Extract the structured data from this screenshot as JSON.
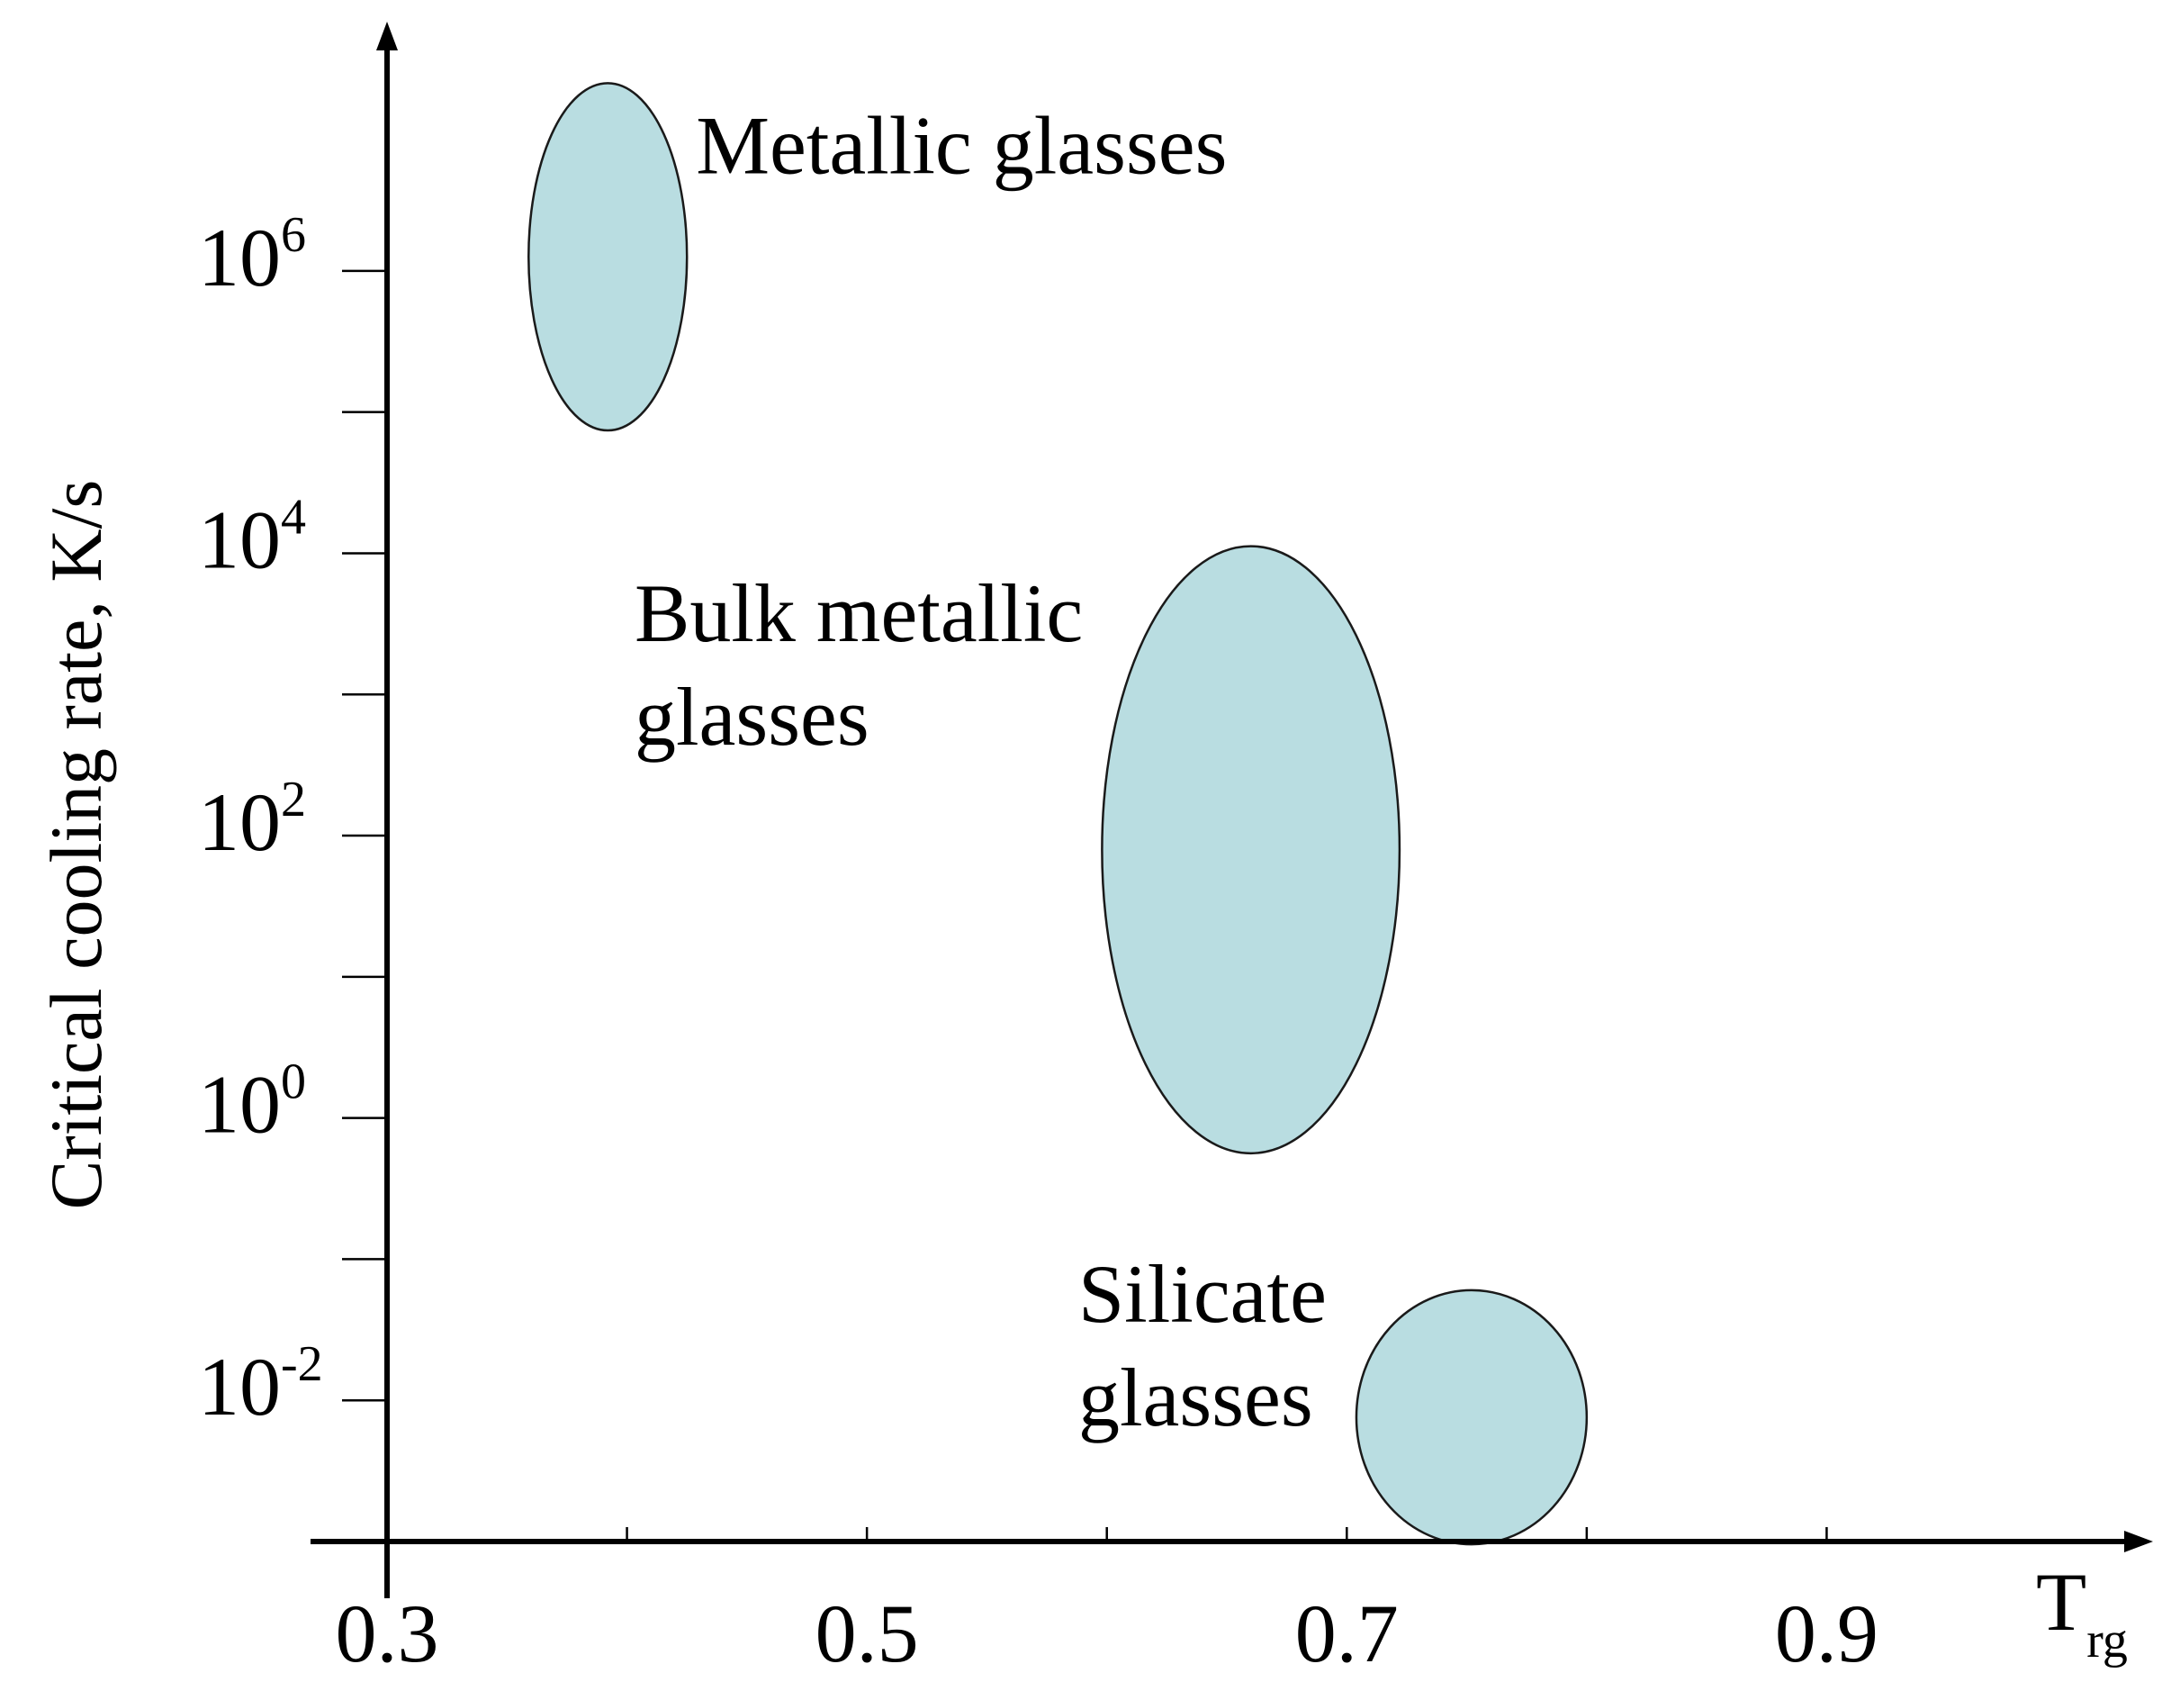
{
  "chart_data": {
    "type": "scatter",
    "title": "",
    "xlabel": "T",
    "xlabel_subscript": "rg",
    "ylabel": "Critical cooling rate, K/s",
    "y_scale": "log10",
    "xlim": [
      0.3,
      1.0
    ],
    "ylim_exp": [
      -3,
      7.6
    ],
    "x_tick_labels": [
      {
        "value": 0.3,
        "label": "0.3"
      },
      {
        "value": 0.5,
        "label": "0.5"
      },
      {
        "value": 0.7,
        "label": "0.7"
      },
      {
        "value": 0.9,
        "label": "0.9"
      }
    ],
    "x_minor_ticks": [
      0.4,
      0.6,
      0.8
    ],
    "y_tick_labels": [
      {
        "exp": 6,
        "base": "10",
        "power": "6"
      },
      {
        "exp": 4,
        "base": "10",
        "power": "4"
      },
      {
        "exp": 2,
        "base": "10",
        "power": "2"
      },
      {
        "exp": 0,
        "base": "10",
        "power": "0"
      },
      {
        "exp": -2,
        "base": "10",
        "power": "-2"
      }
    ],
    "y_minor_ticks": [
      5,
      3,
      1,
      -1
    ],
    "grid": false,
    "fill_color": "#b9dde1",
    "regions": [
      {
        "name": "Metallic glasses",
        "label_lines": [
          "Metallic glasses"
        ],
        "x_center": 0.392,
        "x_half_width": 0.033,
        "log_y_center": 6.1,
        "log_y_half_range": 1.23,
        "label_anchor": "top-right"
      },
      {
        "name": "Bulk metallic glasses",
        "label_lines": [
          "Bulk metallic",
          "glasses"
        ],
        "x_center": 0.66,
        "x_half_width": 0.062,
        "log_y_center": 1.9,
        "log_y_half_range": 2.15,
        "label_anchor": "top-left"
      },
      {
        "name": "Silicate glasses",
        "label_lines": [
          "Silicate",
          "glasses"
        ],
        "x_center": 0.752,
        "x_half_width": 0.048,
        "log_y_center": -2.12,
        "log_y_half_range": 0.9,
        "label_anchor": "top-left"
      }
    ]
  }
}
